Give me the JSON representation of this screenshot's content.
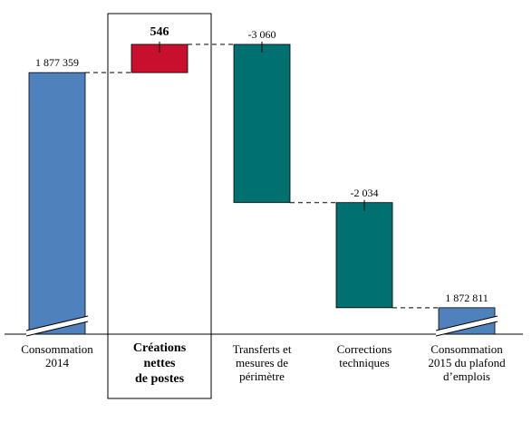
{
  "chart_data": {
    "type": "waterfall",
    "categories": [
      "Consommation\n2014",
      "Créations\nnettes\nde postes",
      "Transferts et\nmesures de\npérimètre",
      "Corrections\ntechniques",
      "Consommation\n2015 du plafond\nd’emplois"
    ],
    "steps": [
      {
        "kind": "total",
        "value": 1877359,
        "label": "1 877 359"
      },
      {
        "kind": "delta",
        "value": 546,
        "label": "546"
      },
      {
        "kind": "delta",
        "value": -3060,
        "label": "-3 060"
      },
      {
        "kind": "delta",
        "value": -2034,
        "label": "-2 034"
      },
      {
        "kind": "total",
        "value": 1872811,
        "label": "1 872 811"
      }
    ],
    "highlighted_category": 1,
    "axis_break": true,
    "colors": {
      "total": "#4f81bd",
      "increase": "#c8102e",
      "decrease": "#007070",
      "connector": "#000000",
      "highlight_box": "#000000"
    }
  }
}
